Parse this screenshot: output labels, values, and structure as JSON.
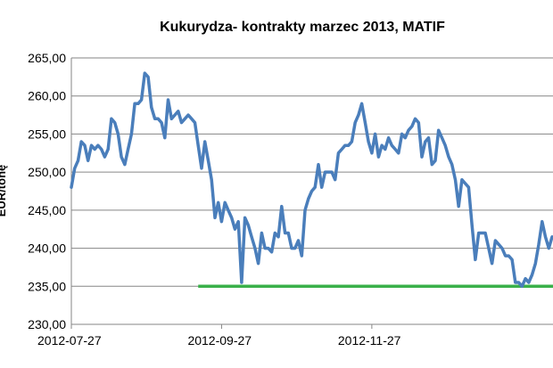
{
  "chart_data": {
    "type": "line",
    "title": "Kukurydza- kontrakty marzec 2013, MATIF",
    "ylabel": "EUR/tonę",
    "xlabel": "",
    "ylim": [
      230,
      265
    ],
    "grid": true,
    "y_ticks": [
      "230,00",
      "235,00",
      "240,00",
      "245,00",
      "250,00",
      "255,00",
      "260,00",
      "265,00"
    ],
    "x_ticks": [
      "2012-07-27",
      "2012-09-27",
      "2012-11-27"
    ],
    "series": [
      {
        "color": "#4a7ebb",
        "values": [
          248.0,
          250.5,
          251.5,
          254.0,
          253.5,
          251.5,
          253.5,
          253.0,
          253.5,
          253.0,
          252.0,
          253.0,
          257.0,
          256.5,
          255.0,
          252.0,
          251.0,
          253.0,
          255.0,
          259.0,
          259.0,
          259.5,
          263.0,
          262.5,
          258.5,
          257.0,
          257.0,
          256.5,
          254.5,
          259.5,
          257.0,
          257.5,
          258.0,
          256.5,
          257.0,
          257.5,
          257.0,
          256.5,
          253.5,
          250.5,
          254.0,
          251.5,
          249.0,
          244.0,
          246.0,
          243.5,
          246.0,
          245.0,
          244.0,
          242.5,
          243.5,
          235.5,
          244.0,
          243.0,
          241.5,
          240.0,
          238.0,
          242.0,
          240.0,
          240.0,
          239.5,
          242.0,
          241.5,
          245.5,
          242.0,
          242.0,
          240.0,
          240.0,
          241.0,
          239.0,
          245.0,
          246.5,
          247.5,
          248.0,
          251.0,
          248.0,
          250.0,
          250.0,
          250.0,
          249.0,
          252.5,
          253.0,
          253.5,
          253.5,
          254.0,
          256.5,
          257.5,
          259.0,
          256.5,
          254.0,
          252.5,
          255.0,
          252.0,
          253.5,
          253.0,
          254.5,
          253.5,
          253.0,
          252.5,
          255.0,
          254.5,
          255.5,
          256.0,
          257.0,
          256.5,
          252.0,
          254.0,
          254.5,
          251.0,
          251.5,
          255.5,
          254.5,
          253.5,
          252.0,
          251.0,
          249.0,
          245.5,
          249.0,
          248.5,
          248.0,
          243.0,
          238.5,
          242.0,
          242.0,
          242.0,
          240.0,
          238.0,
          241.0,
          240.5,
          240.0,
          239.0,
          239.0,
          238.5,
          235.5,
          235.5,
          235.0,
          236.0,
          235.5,
          236.5,
          238.0,
          240.5,
          243.5,
          241.5,
          240.0,
          241.5
        ]
      },
      {
        "color": "#3ab04a",
        "x_from": "2012-09-20",
        "values": [
          235.0
        ]
      }
    ],
    "x_tick_index": [
      0,
      45,
      90
    ],
    "support_start_index": 38
  }
}
